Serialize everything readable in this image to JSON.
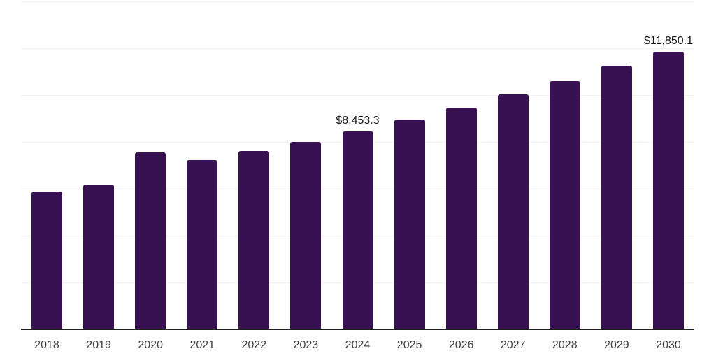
{
  "chart_data": {
    "type": "bar",
    "categories": [
      "2018",
      "2019",
      "2020",
      "2021",
      "2022",
      "2023",
      "2024",
      "2025",
      "2026",
      "2027",
      "2028",
      "2029",
      "2030"
    ],
    "values": [
      5870,
      6190,
      7560,
      7230,
      7610,
      8010,
      8453.3,
      8960,
      9470,
      10030,
      10600,
      11250,
      11850.1
    ],
    "point_labels": [
      null,
      null,
      null,
      null,
      null,
      null,
      "$8,453.3",
      null,
      null,
      null,
      null,
      null,
      "$11,850.1"
    ],
    "title": "",
    "xlabel": "",
    "ylabel": "",
    "ylim": [
      0,
      14000
    ],
    "grid_interval": 2000,
    "grid": "on",
    "y_tick_labels": "none",
    "legend": "none",
    "colors": {
      "bar": "#371151",
      "gridline": "#f0f0f0",
      "axis_line": "#1f1f1f",
      "tick_label": "#404040",
      "data_label": "#1a1a1a",
      "background": "#ffffff"
    }
  }
}
